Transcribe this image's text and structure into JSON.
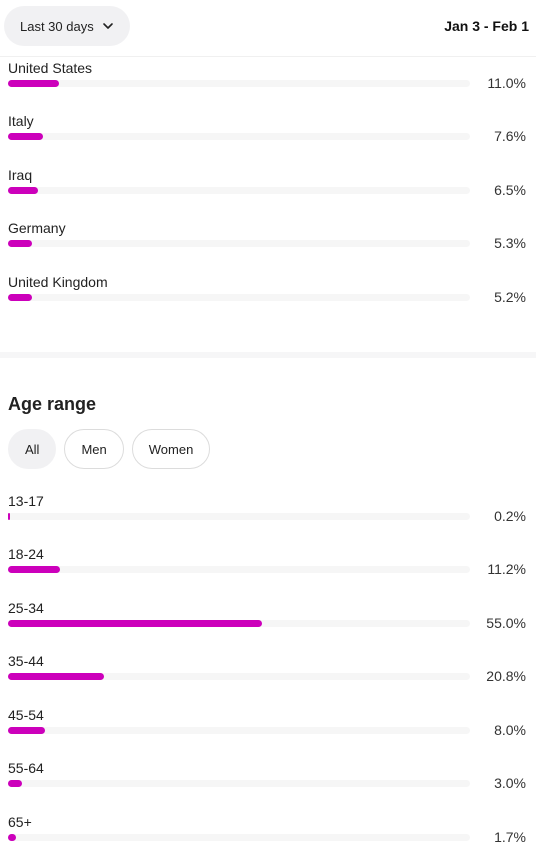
{
  "header": {
    "range_label": "Last 30 days",
    "date_range": "Jan 3 - Feb 1"
  },
  "countries": [
    {
      "label": "United States",
      "value": "11.0%",
      "fraction": 0.11
    },
    {
      "label": "Italy",
      "value": "7.6%",
      "fraction": 0.076
    },
    {
      "label": "Iraq",
      "value": "6.5%",
      "fraction": 0.065
    },
    {
      "label": "Germany",
      "value": "5.3%",
      "fraction": 0.053
    },
    {
      "label": "United Kingdom",
      "value": "5.2%",
      "fraction": 0.052
    }
  ],
  "age": {
    "title": "Age range",
    "tabs": [
      "All",
      "Men",
      "Women"
    ],
    "active_tab": "All",
    "rows": [
      {
        "label": "13-17",
        "value": "0.2%",
        "fraction": 0.002
      },
      {
        "label": "18-24",
        "value": "11.2%",
        "fraction": 0.112
      },
      {
        "label": "25-34",
        "value": "55.0%",
        "fraction": 0.55
      },
      {
        "label": "35-44",
        "value": "20.8%",
        "fraction": 0.208
      },
      {
        "label": "45-54",
        "value": "8.0%",
        "fraction": 0.08
      },
      {
        "label": "55-64",
        "value": "3.0%",
        "fraction": 0.03
      },
      {
        "label": "65+",
        "value": "1.7%",
        "fraction": 0.017
      }
    ]
  },
  "colors": {
    "bar_fill": "#cc00bb",
    "bar_track": "#f6f6f6"
  }
}
